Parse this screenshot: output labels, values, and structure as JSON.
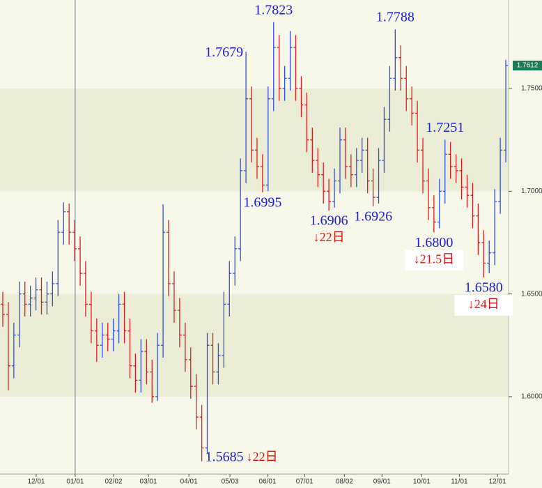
{
  "chart_data": {
    "type": "ohlc",
    "xlim": [
      -0.5,
      91.5
    ],
    "ylim": [
      1.5623,
      1.7931
    ],
    "yticks": [
      {
        "value": 1.6,
        "label": "1.6000"
      },
      {
        "value": 1.65,
        "label": "1.6500"
      },
      {
        "value": 1.7,
        "label": "1.7000"
      },
      {
        "value": 1.75,
        "label": "1.7500"
      }
    ],
    "xticks": [
      {
        "value": 6.05,
        "label": "12/01"
      },
      {
        "value": 13.1,
        "label": "01/01"
      },
      {
        "value": 20.05,
        "label": "02/02"
      },
      {
        "value": 26.35,
        "label": "03/01"
      },
      {
        "value": 33.67,
        "label": "04/01"
      },
      {
        "value": 41.1,
        "label": "05/03"
      },
      {
        "value": 47.9,
        "label": "06/01"
      },
      {
        "value": 54.6,
        "label": "07/01"
      },
      {
        "value": 61.8,
        "label": "08/02"
      },
      {
        "value": 68.6,
        "label": "09/01"
      },
      {
        "value": 75.8,
        "label": "10/01"
      },
      {
        "value": 82.6,
        "label": "11/01"
      },
      {
        "value": 89.5,
        "label": "12/01"
      }
    ],
    "crosshair_x": 13.1,
    "up_color": "#2f4fe0",
    "down_color": "#d81e1e",
    "open": [
      1.645,
      1.64,
      1.615,
      1.63,
      1.65,
      1.645,
      1.648,
      1.652,
      1.646,
      1.65,
      1.655,
      1.68,
      1.69,
      1.68,
      1.672,
      1.66,
      1.645,
      1.632,
      1.625,
      1.63,
      1.628,
      1.632,
      1.645,
      1.632,
      1.615,
      1.608,
      1.622,
      1.612,
      1.6,
      1.625,
      1.68,
      1.655,
      1.642,
      1.63,
      1.618,
      1.605,
      1.59,
      1.575,
      1.625,
      1.612,
      1.62,
      1.645,
      1.66,
      1.672,
      1.71,
      1.745,
      1.72,
      1.712,
      1.703,
      1.745,
      1.77,
      1.75,
      1.755,
      1.77,
      1.75,
      1.742,
      1.725,
      1.715,
      1.708,
      1.7,
      1.695,
      1.705,
      1.725,
      1.712,
      1.708,
      1.715,
      1.72,
      1.705,
      1.697,
      1.715,
      1.735,
      1.755,
      1.765,
      1.755,
      1.745,
      1.738,
      1.72,
      1.705,
      1.692,
      1.685,
      1.7,
      1.718,
      1.712,
      1.71,
      1.702,
      1.698,
      1.688,
      1.675,
      1.665,
      1.67,
      1.695,
      1.72
    ],
    "high": [
      1.651,
      1.646,
      1.636,
      1.656,
      1.656,
      1.654,
      1.658,
      1.658,
      1.656,
      1.661,
      1.686,
      1.6946,
      1.694,
      1.686,
      1.678,
      1.666,
      1.651,
      1.638,
      1.636,
      1.636,
      1.638,
      1.65,
      1.651,
      1.638,
      1.621,
      1.628,
      1.628,
      1.618,
      1.631,
      1.6936,
      1.686,
      1.661,
      1.648,
      1.636,
      1.624,
      1.611,
      1.596,
      1.631,
      1.631,
      1.626,
      1.651,
      1.666,
      1.678,
      1.716,
      1.7679,
      1.751,
      1.726,
      1.718,
      1.751,
      1.7823,
      1.776,
      1.761,
      1.778,
      1.776,
      1.756,
      1.748,
      1.731,
      1.721,
      1.714,
      1.706,
      1.711,
      1.731,
      1.731,
      1.718,
      1.721,
      1.726,
      1.726,
      1.711,
      1.721,
      1.741,
      1.761,
      1.7788,
      1.771,
      1.761,
      1.751,
      1.744,
      1.726,
      1.711,
      1.698,
      1.706,
      1.7251,
      1.724,
      1.718,
      1.716,
      1.708,
      1.704,
      1.694,
      1.681,
      1.676,
      1.701,
      1.726,
      1.764
    ],
    "low": [
      1.634,
      1.603,
      1.609,
      1.624,
      1.639,
      1.639,
      1.642,
      1.64,
      1.64,
      1.644,
      1.649,
      1.674,
      1.674,
      1.666,
      1.654,
      1.639,
      1.626,
      1.617,
      1.619,
      1.622,
      1.622,
      1.626,
      1.626,
      1.609,
      1.602,
      1.602,
      1.606,
      1.597,
      1.598,
      1.619,
      1.649,
      1.636,
      1.624,
      1.612,
      1.599,
      1.584,
      1.5685,
      1.572,
      1.606,
      1.606,
      1.614,
      1.639,
      1.654,
      1.666,
      1.704,
      1.714,
      1.706,
      1.6995,
      1.7,
      1.739,
      1.744,
      1.744,
      1.749,
      1.744,
      1.736,
      1.719,
      1.709,
      1.702,
      1.694,
      1.6906,
      1.692,
      1.699,
      1.706,
      1.702,
      1.702,
      1.709,
      1.699,
      1.6926,
      1.694,
      1.709,
      1.729,
      1.749,
      1.749,
      1.739,
      1.732,
      1.714,
      1.699,
      1.686,
      1.68,
      1.682,
      1.694,
      1.706,
      1.704,
      1.696,
      1.692,
      1.682,
      1.669,
      1.658,
      1.66,
      1.664,
      1.689,
      1.714
    ],
    "close": [
      1.64,
      1.615,
      1.63,
      1.65,
      1.645,
      1.648,
      1.652,
      1.646,
      1.65,
      1.655,
      1.68,
      1.69,
      1.68,
      1.672,
      1.66,
      1.645,
      1.632,
      1.625,
      1.63,
      1.628,
      1.632,
      1.645,
      1.632,
      1.615,
      1.608,
      1.622,
      1.612,
      1.6,
      1.625,
      1.68,
      1.655,
      1.642,
      1.63,
      1.618,
      1.605,
      1.59,
      1.575,
      1.625,
      1.612,
      1.62,
      1.645,
      1.66,
      1.672,
      1.71,
      1.745,
      1.72,
      1.712,
      1.703,
      1.745,
      1.77,
      1.75,
      1.755,
      1.77,
      1.75,
      1.742,
      1.725,
      1.715,
      1.708,
      1.7,
      1.695,
      1.705,
      1.725,
      1.712,
      1.708,
      1.715,
      1.72,
      1.705,
      1.697,
      1.715,
      1.735,
      1.755,
      1.765,
      1.755,
      1.745,
      1.738,
      1.72,
      1.705,
      1.692,
      1.685,
      1.7,
      1.718,
      1.712,
      1.71,
      1.702,
      1.698,
      1.688,
      1.675,
      1.665,
      1.67,
      1.695,
      1.72,
      1.7612
    ],
    "last_price": 1.7612,
    "annotations": [
      {
        "label": "1.7823",
        "x": 49,
        "y": 1.7823,
        "position": "above"
      },
      {
        "label": "1.7679",
        "x": 44,
        "y": 1.7679,
        "position": "left"
      },
      {
        "label": "1.6995",
        "x": 47,
        "y": 1.6995,
        "position": "below"
      },
      {
        "label": "1.6906",
        "x": 59,
        "y": 1.6906,
        "position": "below",
        "note": "↓22日"
      },
      {
        "label": "1.6926",
        "x": 67,
        "y": 1.6926,
        "position": "below"
      },
      {
        "label": "1.7788",
        "x": 71,
        "y": 1.7788,
        "position": "above"
      },
      {
        "label": "1.7251",
        "x": 80,
        "y": 1.7251,
        "position": "above"
      },
      {
        "label": "1.6800",
        "x": 78,
        "y": 1.68,
        "position": "below",
        "note": "↓21.5日",
        "note_box": true
      },
      {
        "label": "1.6580",
        "x": 87,
        "y": 1.658,
        "position": "below",
        "note": "↓24日",
        "note_box": true
      },
      {
        "label": "1.5685",
        "x": 36,
        "y": 1.5685,
        "position": "right",
        "note": "↓22日"
      }
    ]
  }
}
